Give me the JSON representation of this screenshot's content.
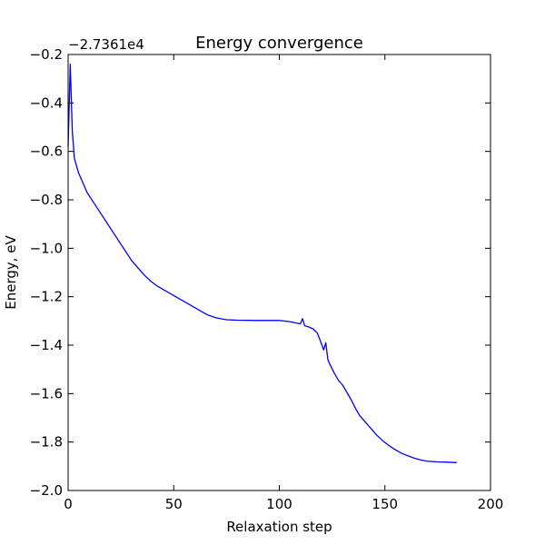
{
  "chart_data": {
    "type": "line",
    "title": "Energy convergence",
    "xlabel": "Relaxation step",
    "ylabel": "Energy, eV",
    "y_offset_label": "−2.7361e4",
    "xlim": [
      0,
      200
    ],
    "ylim": [
      -2.0,
      -0.2
    ],
    "xticks": [
      0,
      50,
      100,
      150,
      200
    ],
    "xtick_labels": [
      "0",
      "50",
      "100",
      "150",
      "200"
    ],
    "yticks": [
      -2.0,
      -1.8,
      -1.6,
      -1.4,
      -1.2,
      -1.0,
      -0.8,
      -0.6,
      -0.4,
      -0.2
    ],
    "ytick_labels": [
      "−2.0",
      "−1.8",
      "−1.6",
      "−1.4",
      "−1.2",
      "−1.0",
      "−0.8",
      "−0.6",
      "−0.4",
      "−0.2"
    ],
    "grid": false,
    "line_color": "#0000ff",
    "series": [
      {
        "x": [
          0,
          1,
          2,
          3,
          4,
          5,
          7,
          9,
          12,
          15,
          18,
          21,
          24,
          27,
          30,
          33,
          36,
          39,
          42,
          45,
          48,
          51,
          54,
          57,
          60,
          63,
          66,
          70,
          75,
          80,
          90,
          100,
          105,
          110,
          111,
          112,
          114,
          116,
          118,
          120,
          121,
          122,
          123,
          124,
          126,
          128,
          130,
          132,
          134,
          136,
          138,
          140,
          143,
          146,
          149,
          152,
          155,
          158,
          161,
          164,
          167,
          170,
          175,
          180,
          184
        ],
        "y": [
          -0.58,
          -0.24,
          -0.52,
          -0.63,
          -0.66,
          -0.69,
          -0.73,
          -0.77,
          -0.81,
          -0.85,
          -0.89,
          -0.93,
          -0.97,
          -1.01,
          -1.05,
          -1.08,
          -1.11,
          -1.135,
          -1.155,
          -1.17,
          -1.185,
          -1.2,
          -1.215,
          -1.23,
          -1.245,
          -1.26,
          -1.275,
          -1.287,
          -1.295,
          -1.297,
          -1.298,
          -1.298,
          -1.303,
          -1.312,
          -1.29,
          -1.32,
          -1.325,
          -1.333,
          -1.35,
          -1.395,
          -1.42,
          -1.39,
          -1.46,
          -1.48,
          -1.515,
          -1.545,
          -1.565,
          -1.595,
          -1.625,
          -1.66,
          -1.69,
          -1.71,
          -1.74,
          -1.77,
          -1.795,
          -1.815,
          -1.832,
          -1.847,
          -1.857,
          -1.867,
          -1.874,
          -1.879,
          -1.882,
          -1.883,
          -1.885
        ]
      }
    ]
  }
}
